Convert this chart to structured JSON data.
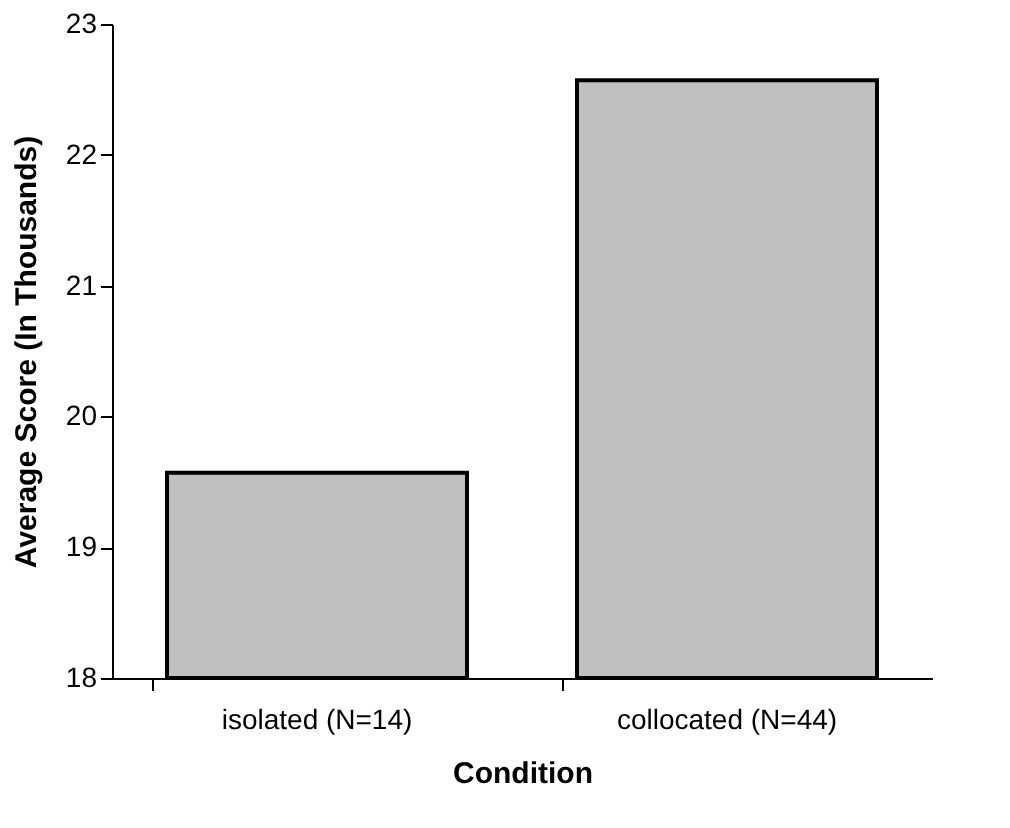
{
  "chart_data": {
    "type": "bar",
    "xlabel": "Condition",
    "ylabel": "Average Score (In Thousands)",
    "categories": [
      "isolated (N=14)",
      "collocated (N=44)"
    ],
    "values": [
      19.57,
      22.57
    ],
    "color": "#c0c0c0",
    "ylim": [
      18,
      23
    ],
    "yticks": [
      18,
      19,
      20,
      21,
      22,
      23
    ],
    "grid": false
  }
}
